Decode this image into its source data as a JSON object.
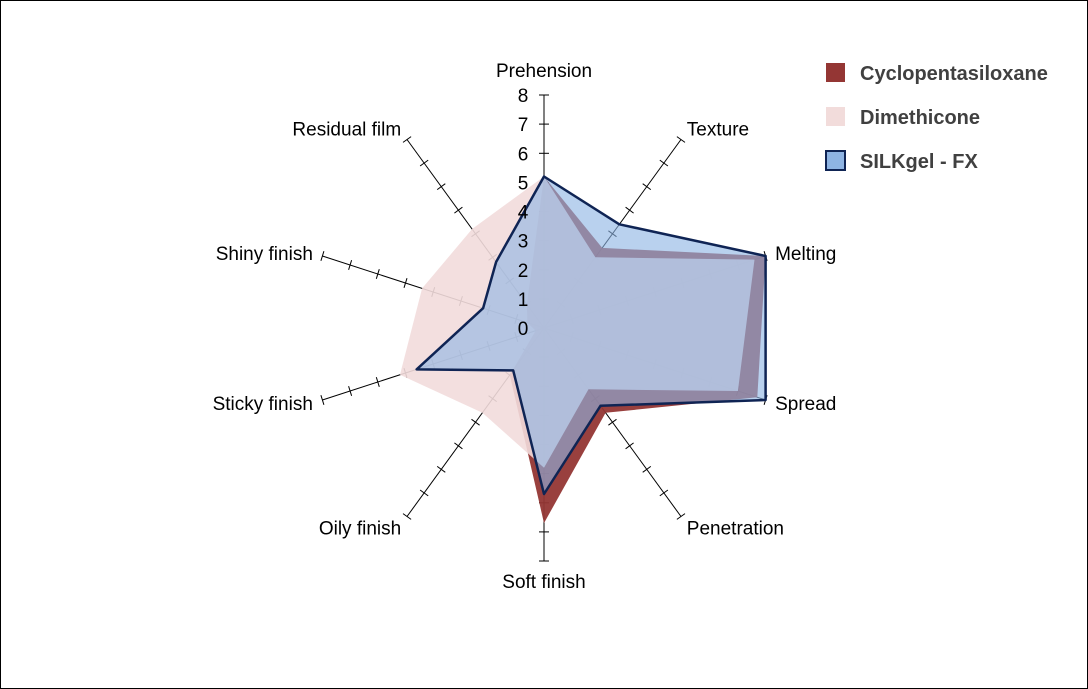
{
  "chart_data": {
    "type": "radar",
    "title": "",
    "axes": [
      "Prehension",
      "Texture",
      "Melting",
      "Spread",
      "Penetration",
      "Soft finish",
      "Oily finish",
      "Sticky finish",
      "Shiny finish",
      "Residual film"
    ],
    "rlim": [
      0,
      8
    ],
    "ticks": [
      "0",
      "1",
      "2",
      "3",
      "4",
      "5",
      "6",
      "7",
      "8"
    ],
    "grid": false,
    "legend_position": "top-right",
    "series": [
      {
        "name": "Cyclopentasiloxane",
        "values": [
          5.2,
          3.4,
          8.0,
          7.7,
          3.6,
          6.7,
          2.0,
          0.3,
          0.6,
          1.0
        ],
        "color": "#943634"
      },
      {
        "name": "Dimethicone",
        "values": [
          5.2,
          3.0,
          7.6,
          7.0,
          2.6,
          4.8,
          3.6,
          5.2,
          4.4,
          4.2
        ],
        "color": "#f2dcdb"
      },
      {
        "name": "SILKgel - FX",
        "values": [
          5.2,
          4.4,
          8.0,
          8.0,
          3.3,
          5.7,
          1.8,
          4.6,
          2.2,
          2.8
        ],
        "color": "#8eb4e3"
      }
    ]
  }
}
